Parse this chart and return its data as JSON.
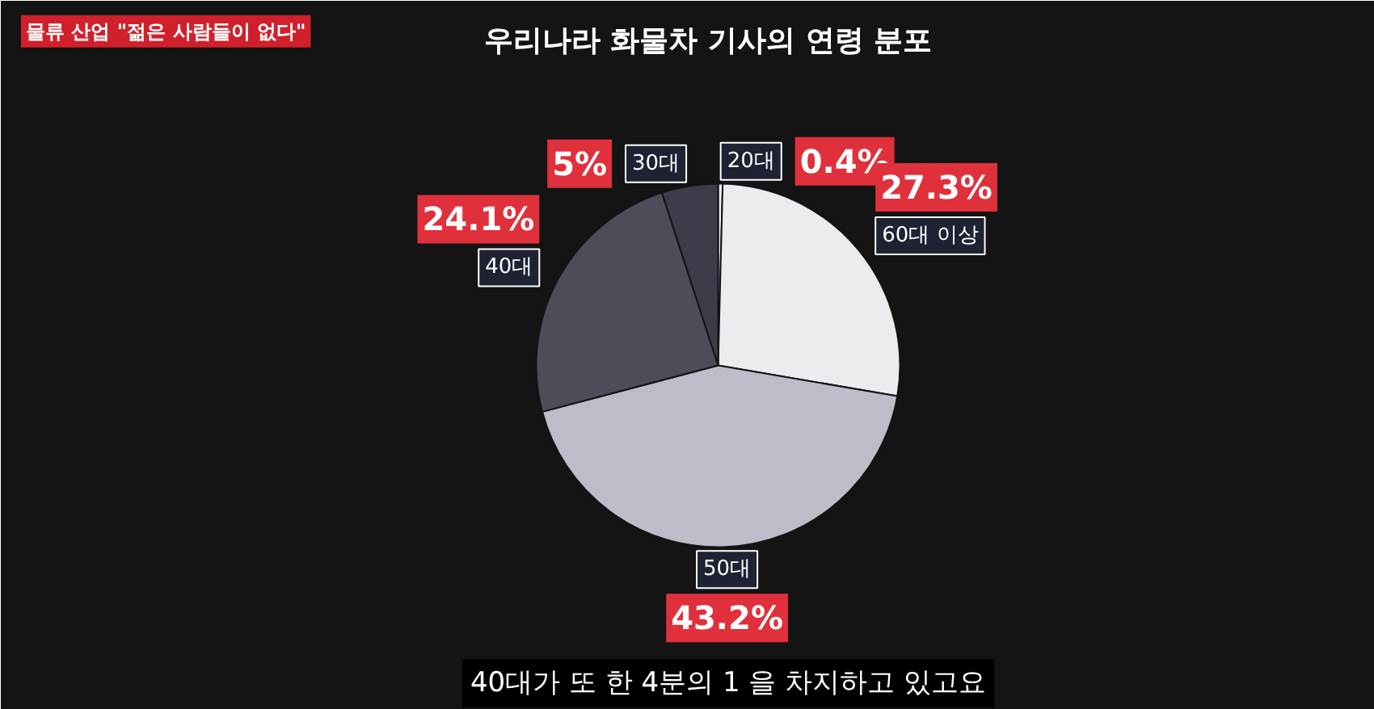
{
  "chart_data": {
    "type": "pie",
    "title": "우리나라 화물차 기사의 연령 분포",
    "subtitle": "물류 산업 \"젊은 사람들이 없다\"",
    "categories": [
      "20대",
      "60대 이상",
      "50대",
      "40대",
      "30대"
    ],
    "values": [
      0.4,
      27.3,
      43.2,
      24.1,
      5
    ],
    "value_labels": [
      "0.4%",
      "27.3%",
      "43.2%",
      "24.1%",
      "5%"
    ],
    "colors": [
      "#f4f4f6",
      "#ececf0",
      "#bdbdc9",
      "#4d4d5a",
      "#3c3c4a"
    ],
    "annotations": [
      "40대가 또 한 4분의 1 을 차지하고 있고요"
    ]
  }
}
